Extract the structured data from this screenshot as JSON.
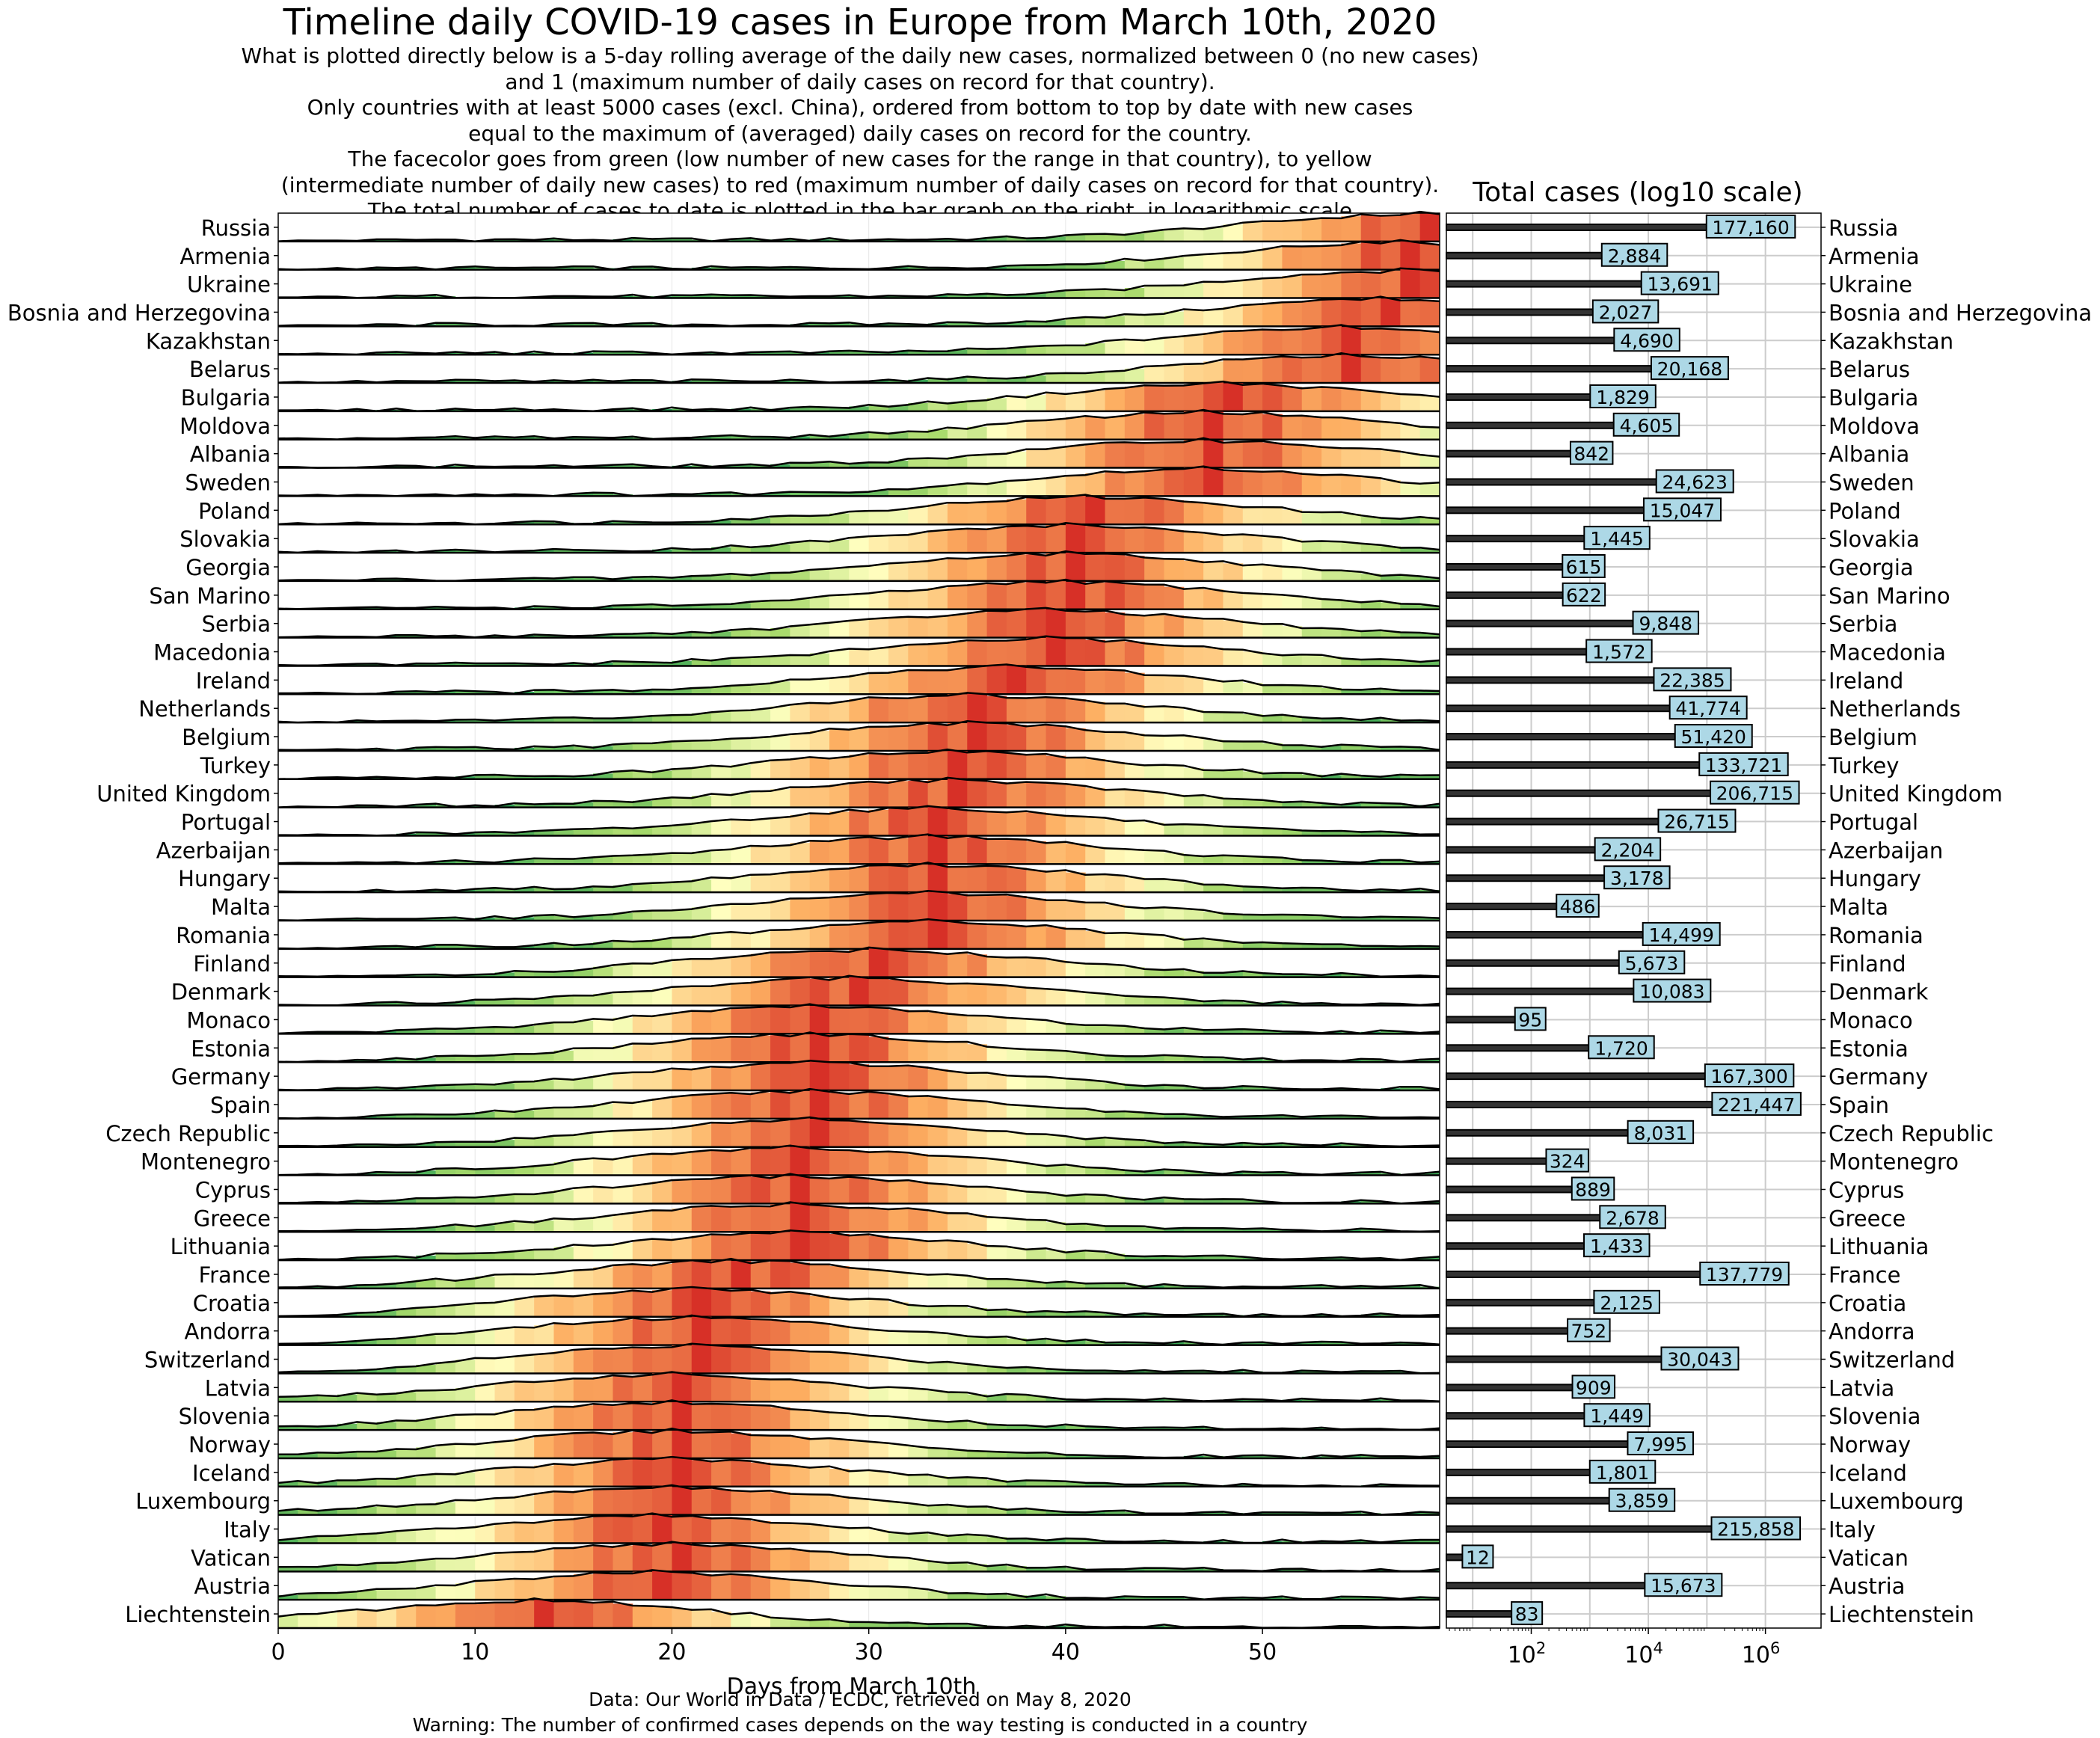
{
  "header": {
    "title": "Timeline daily COVID-19 cases in Europe from March 10th, 2020",
    "subtitle_lines": [
      "What is plotted directly below is a 5-day rolling average of the daily new cases, normalized between 0 (no new cases)",
      "and 1 (maximum number of daily cases on record for that country).",
      "Only countries with at least 5000 cases  (excl. China), ordered from bottom to top by date with new cases",
      "equal to the maximum of (averaged) daily cases on record for the country.",
      "The facecolor goes from green (low number of new cases for the range in that country), to yellow",
      "(intermediate number of daily new cases) to red (maximum number of daily cases on record for that country).",
      "The total number of cases to date is plotted in the bar graph on the right, in logarithmic scale"
    ]
  },
  "footer": {
    "line1": "Data: Our World in Data / ECDC, retrieved on May 8, 2020",
    "line2": "Warning: The number of confirmed cases depends on the way testing is conducted in a country"
  },
  "chart_data": [
    {
      "type": "area",
      "xlabel": "Days from March 10th",
      "xlim": [
        0,
        59
      ],
      "xticks": [
        0,
        10,
        20,
        30,
        40,
        50
      ],
      "colormap": [
        "#1a9850",
        "#a6d96a",
        "#ffffbf",
        "#fdae61",
        "#d73027"
      ],
      "countries": [
        "Russia",
        "Armenia",
        "Ukraine",
        "Bosnia and Herzegovina",
        "Kazakhstan",
        "Belarus",
        "Bulgaria",
        "Moldova",
        "Albania",
        "Sweden",
        "Poland",
        "Slovakia",
        "Georgia",
        "San Marino",
        "Serbia",
        "Macedonia",
        "Ireland",
        "Netherlands",
        "Belgium",
        "Turkey",
        "United Kingdom",
        "Portugal",
        "Azerbaijan",
        "Hungary",
        "Malta",
        "Romania",
        "Finland",
        "Denmark",
        "Monaco",
        "Estonia",
        "Germany",
        "Spain",
        "Czech Republic",
        "Montenegro",
        "Cyprus",
        "Greece",
        "Lithuania",
        "France",
        "Croatia",
        "Andorra",
        "Switzerland",
        "Latvia",
        "Slovenia",
        "Norway",
        "Iceland",
        "Luxembourg",
        "Italy",
        "Vatican",
        "Austria",
        "Liechtenstein"
      ],
      "peak_day": [
        58,
        57,
        57,
        56,
        54,
        54,
        48,
        47,
        47,
        47,
        41,
        40,
        40,
        40,
        39,
        39,
        37,
        35,
        35,
        34,
        34,
        33,
        33,
        33,
        33,
        33,
        30,
        29,
        27,
        27,
        27,
        27,
        27,
        26,
        26,
        26,
        26,
        23,
        21,
        21,
        21,
        20,
        20,
        20,
        20,
        20,
        19,
        20,
        19,
        13
      ],
      "series_note": "5-day rolling average of daily new cases, normalized 0-1 per country"
    },
    {
      "type": "bar",
      "title": "Total cases (log10 scale)",
      "xscale": "log",
      "xticks": [
        "10^2",
        "10^4",
        "10^6"
      ],
      "categories": [
        "Russia",
        "Armenia",
        "Ukraine",
        "Bosnia and Herzegovina",
        "Kazakhstan",
        "Belarus",
        "Bulgaria",
        "Moldova",
        "Albania",
        "Sweden",
        "Poland",
        "Slovakia",
        "Georgia",
        "San Marino",
        "Serbia",
        "Macedonia",
        "Ireland",
        "Netherlands",
        "Belgium",
        "Turkey",
        "United Kingdom",
        "Portugal",
        "Azerbaijan",
        "Hungary",
        "Malta",
        "Romania",
        "Finland",
        "Denmark",
        "Monaco",
        "Estonia",
        "Germany",
        "Spain",
        "Czech Republic",
        "Montenegro",
        "Cyprus",
        "Greece",
        "Lithuania",
        "France",
        "Croatia",
        "Andorra",
        "Switzerland",
        "Latvia",
        "Slovenia",
        "Norway",
        "Iceland",
        "Luxembourg",
        "Italy",
        "Vatican",
        "Austria",
        "Liechtenstein"
      ],
      "values": [
        177160,
        2884,
        13691,
        2027,
        4690,
        20168,
        1829,
        4605,
        842,
        24623,
        15047,
        1445,
        615,
        622,
        9848,
        1572,
        22385,
        41774,
        51420,
        133721,
        206715,
        26715,
        2204,
        3178,
        486,
        14499,
        5673,
        10083,
        95,
        1720,
        167300,
        221447,
        8031,
        324,
        889,
        2678,
        1433,
        137779,
        2125,
        752,
        30043,
        909,
        1449,
        7995,
        1801,
        3859,
        215858,
        12,
        15673,
        83
      ],
      "labels": [
        "177,160",
        "2,884",
        "13,691",
        "2,027",
        "4,690",
        "20,168",
        "1,829",
        "4,605",
        "842",
        "24,623",
        "15,047",
        "1,445",
        "615",
        "622",
        "9,848",
        "1,572",
        "22,385",
        "41,774",
        "51,420",
        "133,721",
        "206,715",
        "26,715",
        "2,204",
        "3,178",
        "486",
        "14,499",
        "5,673",
        "10,083",
        "95",
        "1,720",
        "167,300",
        "221,447",
        "8,031",
        "324",
        "889",
        "2,678",
        "1,433",
        "137,779",
        "2,125",
        "752",
        "30,043",
        "909",
        "1,449",
        "7,995",
        "1,801",
        "3,859",
        "215,858",
        "12",
        "15,673",
        "83"
      ]
    }
  ]
}
